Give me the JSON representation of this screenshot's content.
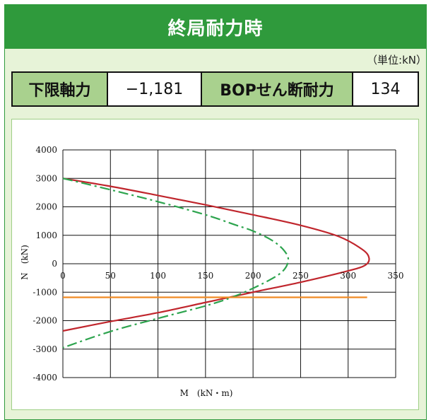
{
  "header": {
    "title": "終局耐力時"
  },
  "unit_note": "（単位:kN）",
  "summary": {
    "lower_axial_label": "下限軸力",
    "lower_axial_value": "−1,181",
    "bop_shear_label": "BOPせん断耐力",
    "bop_shear_value": "134"
  },
  "chart_data": {
    "type": "line",
    "xlabel": "M　(kN・m)",
    "ylabel": "N　(kN)",
    "xlim": [
      0,
      350
    ],
    "ylim": [
      -4000,
      4000
    ],
    "x_ticks": [
      0,
      50,
      100,
      150,
      200,
      250,
      300,
      350
    ],
    "y_ticks": [
      4000,
      3000,
      2000,
      1000,
      0,
      -1000,
      -2000,
      -3000,
      -4000
    ],
    "grid": true,
    "series": [
      {
        "style": "solid",
        "color": "#c0262d",
        "points": [
          [
            0,
            3000
          ],
          [
            50,
            2720
          ],
          [
            100,
            2400
          ],
          [
            150,
            2070
          ],
          [
            200,
            1720
          ],
          [
            250,
            1350
          ],
          [
            290,
            960
          ],
          [
            315,
            500
          ],
          [
            322,
            200
          ],
          [
            318,
            -50
          ],
          [
            300,
            -250
          ],
          [
            250,
            -650
          ],
          [
            200,
            -1000
          ],
          [
            150,
            -1360
          ],
          [
            100,
            -1720
          ],
          [
            50,
            -2030
          ],
          [
            0,
            -2360
          ]
        ]
      },
      {
        "style": "dash-dot",
        "color": "#2da44e",
        "points": [
          [
            0,
            3000
          ],
          [
            50,
            2600
          ],
          [
            100,
            2180
          ],
          [
            150,
            1720
          ],
          [
            180,
            1380
          ],
          [
            200,
            1150
          ],
          [
            220,
            820
          ],
          [
            233,
            450
          ],
          [
            237,
            100
          ],
          [
            230,
            -300
          ],
          [
            210,
            -700
          ],
          [
            180,
            -1150
          ],
          [
            150,
            -1480
          ],
          [
            100,
            -1920
          ],
          [
            50,
            -2380
          ],
          [
            0,
            -2950
          ]
        ]
      },
      {
        "style": "solid",
        "color": "#f08a24",
        "points": [
          [
            0,
            -1181
          ],
          [
            320,
            -1181
          ]
        ]
      }
    ]
  }
}
